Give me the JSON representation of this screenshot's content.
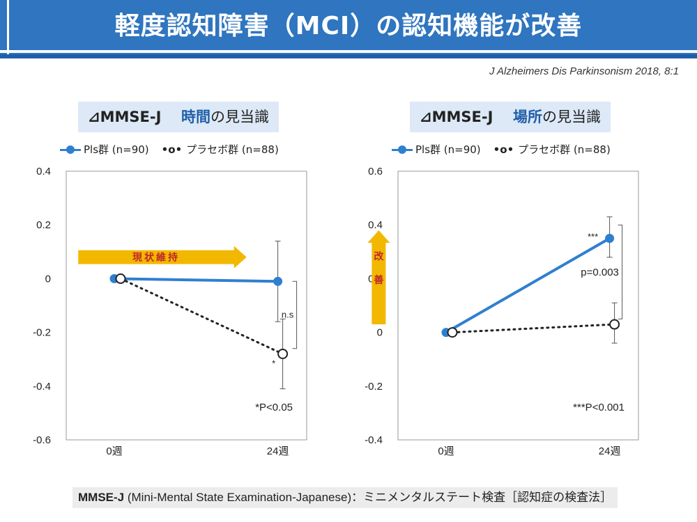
{
  "header": {
    "title": "軽度認知障害（MCI）の認知機能が改善"
  },
  "citation": "J Alzheimers Dis Parkinsonism 2018, 8:1",
  "panels": [
    {
      "title_prefix": "⊿MMSE-J",
      "title_accent": "時間",
      "title_rest": "の見当識"
    },
    {
      "title_prefix": "⊿MMSE-J",
      "title_accent": "場所",
      "title_rest": "の見当識"
    }
  ],
  "legend": {
    "pls": "Pls群 (n=90)",
    "placebo_symbol": "•o•",
    "placebo": "プラセボ群 (n=88)"
  },
  "footer": {
    "bold": "MMSE-J",
    "rest": "(Mini-Mental State Examination-Japanese)：ミニメンタルステート検査［認知症の検査法］"
  },
  "colors": {
    "header": "#2f75bf",
    "pls": "#2f7fd0",
    "placebo": "#222222",
    "arrow": "#f2b800",
    "arrow_text": "#c0282a"
  },
  "chart_data": [
    {
      "type": "line",
      "title": "⊿MMSE-J 時間の見当識",
      "categories": [
        "0週",
        "24週"
      ],
      "ylim": [
        -0.6,
        0.4
      ],
      "yticks": [
        0.4,
        0.2,
        0,
        -0.2,
        -0.4,
        -0.6
      ],
      "ytick_labels": [
        "0.4",
        "0.2",
        "0",
        "-0.2",
        "-0.4",
        "-0.6"
      ],
      "series": [
        {
          "name": "Pls群 (n=90)",
          "style": "solid",
          "values": [
            0,
            -0.01
          ],
          "err_low": [
            null,
            -0.16
          ],
          "err_high": [
            null,
            0.14
          ]
        },
        {
          "name": "プラセボ群 (n=88)",
          "style": "dotted",
          "values": [
            0,
            -0.28
          ],
          "err_low": [
            null,
            -0.41
          ],
          "err_high": [
            null,
            -0.15
          ]
        }
      ],
      "point_marks": [
        "",
        "*"
      ],
      "comparison": {
        "label": "n.s",
        "y_from": -0.01,
        "y_to": -0.26
      },
      "arrow": {
        "direction": "right",
        "label": "現状維持",
        "from": [
          0.05,
          0.08
        ],
        "to": [
          0.75,
          0.08
        ]
      },
      "footnote": "*P<0.05"
    },
    {
      "type": "line",
      "title": "⊿MMSE-J 場所の見当識",
      "categories": [
        "0週",
        "24週"
      ],
      "ylim": [
        -0.4,
        0.6
      ],
      "yticks": [
        0.6,
        0.4,
        0.2,
        0,
        -0.2,
        -0.4
      ],
      "ytick_labels": [
        "0.6",
        "0.4",
        "0.2",
        "0",
        "-0.2",
        "-0.4"
      ],
      "series": [
        {
          "name": "Pls群 (n=90)",
          "style": "solid",
          "values": [
            0,
            0.35
          ],
          "err_low": [
            null,
            0.28
          ],
          "err_high": [
            null,
            0.43
          ]
        },
        {
          "name": "プラセボ群 (n=88)",
          "style": "dotted",
          "values": [
            0,
            0.03
          ],
          "err_low": [
            null,
            -0.04
          ],
          "err_high": [
            null,
            0.11
          ]
        }
      ],
      "point_marks": [
        "",
        "***"
      ],
      "comparison": {
        "label": "p=0.003",
        "y_from": 0.4,
        "y_to": 0.05
      },
      "arrow": {
        "direction": "up",
        "label": "改善",
        "from": [
          -0.08,
          0.03
        ],
        "to": [
          -0.08,
          0.38
        ]
      },
      "footnote": "***P<0.001"
    }
  ]
}
